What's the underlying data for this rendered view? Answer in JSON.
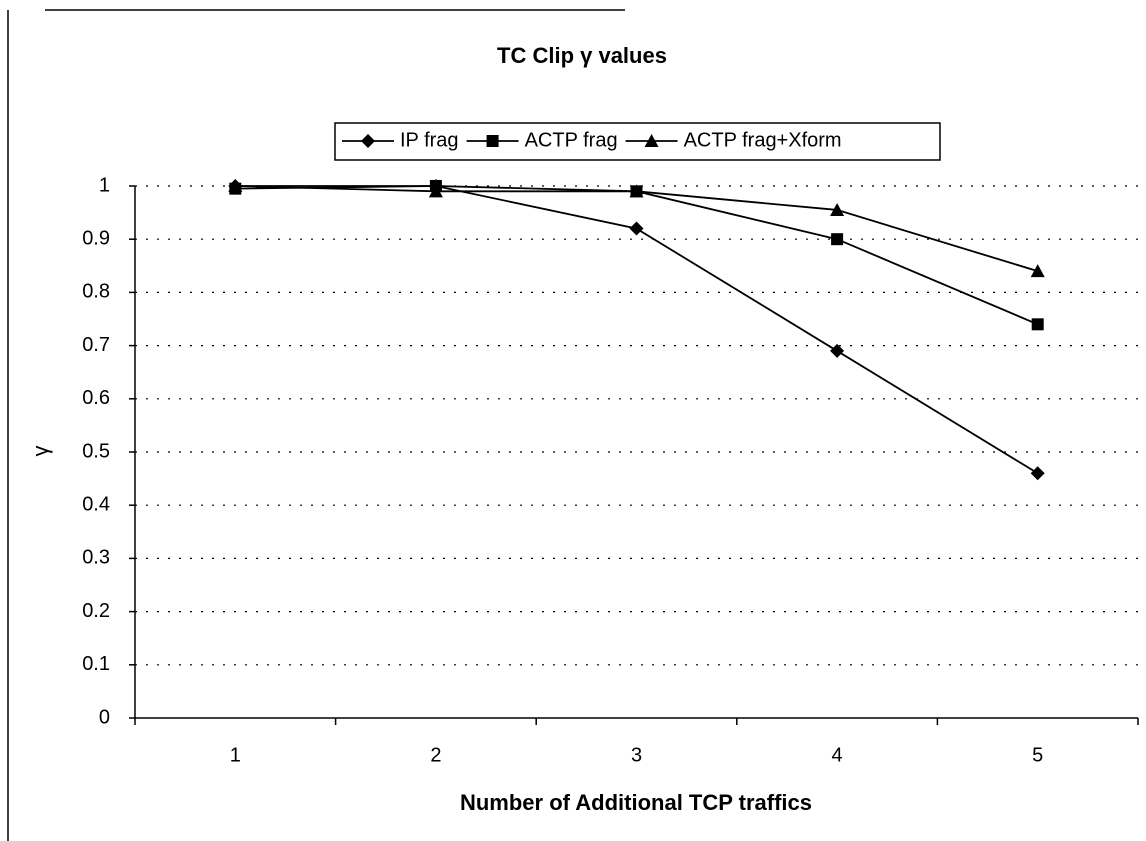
{
  "chart_data": {
    "type": "line",
    "title": "TC Clip γ values",
    "x_label": "Number of Additional TCP traffics",
    "y_label": "γ",
    "categories": [
      "1",
      "2",
      "3",
      "4",
      "5"
    ],
    "series": [
      {
        "name": "IP frag",
        "color": "#000000",
        "marker": "diamond",
        "values": [
          1.0,
          1.0,
          0.92,
          0.69,
          0.46
        ]
      },
      {
        "name": "ACTP frag",
        "color": "#000000",
        "marker": "square",
        "values": [
          0.995,
          1.0,
          0.99,
          0.9,
          0.74
        ]
      },
      {
        "name": "ACTP frag+Xform",
        "color": "#000000",
        "marker": "triangle",
        "values": [
          1.0,
          0.99,
          0.99,
          0.955,
          0.84
        ]
      }
    ],
    "ylim": [
      0,
      1
    ],
    "yticks": [
      0,
      0.1,
      0.2,
      0.3,
      0.4,
      0.5,
      0.6,
      0.7,
      0.8,
      0.9,
      1
    ],
    "grid": true,
    "legend": "top"
  }
}
